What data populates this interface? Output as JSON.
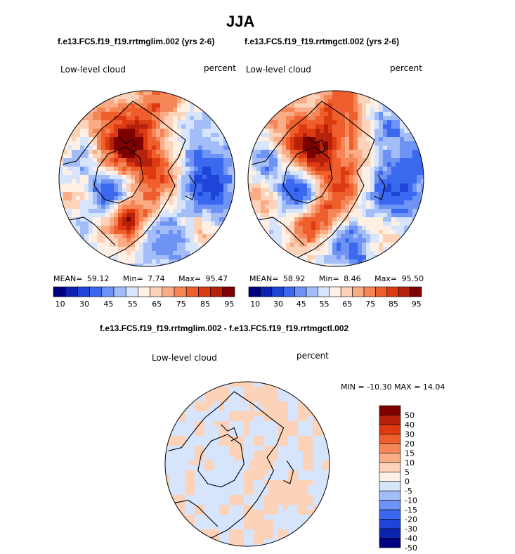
{
  "title": "JJA",
  "colors": {
    "abs_scale": [
      "#00007f",
      "#0b24b0",
      "#1e44d8",
      "#3a68ee",
      "#6e93f5",
      "#a3bdf8",
      "#d6e4fc",
      "#fff0e6",
      "#fcd2b8",
      "#f9ac85",
      "#f58657",
      "#ef5e2d",
      "#dd3a12",
      "#b5210a",
      "#7f0000"
    ],
    "diff_scale": [
      "#00007f",
      "#0b24b0",
      "#1e44d8",
      "#3a68ee",
      "#6e93f5",
      "#a3bdf8",
      "#d6e4fc",
      "#fff0e6",
      "#fcd2b8",
      "#f9ac85",
      "#f58657",
      "#ef5e2d",
      "#dd3a12",
      "#b5210a",
      "#7f0000"
    ]
  },
  "chart_data": [
    {
      "type": "heatmap",
      "projection": "north polar stereographic",
      "title": "f.e13.FC5.f19_f19.rrtmglim.002 (yrs 2-6)",
      "left_label": "Low-level cloud",
      "right_label": "percent",
      "stats": {
        "mean_label": "MEAN=",
        "mean": "59.12",
        "min_label": "Min=",
        "min": "7.74",
        "max_label": "Max=",
        "max": "95.47"
      },
      "colorbar_ticks": [
        "10",
        "30",
        "45",
        "55",
        "65",
        "75",
        "85",
        "95"
      ]
    },
    {
      "type": "heatmap",
      "projection": "north polar stereographic",
      "title": "f.e13.FC5.f19_f19.rrtmgctl.002 (yrs 2-6)",
      "left_label": "Low-level cloud",
      "right_label": "percent",
      "stats": {
        "mean_label": "MEAN=",
        "mean": "58.92",
        "min_label": "Min=",
        "min": "8.46",
        "max_label": "Max=",
        "max": "95.50"
      },
      "colorbar_ticks": [
        "10",
        "30",
        "45",
        "55",
        "65",
        "75",
        "85",
        "95"
      ]
    },
    {
      "type": "heatmap",
      "projection": "north polar stereographic",
      "title": "f.e13.FC5.f19_f19.rrtmglim.002 - f.e13.FC5.f19_f19.rrtmgctl.002",
      "left_label": "Low-level cloud",
      "right_label": "percent",
      "stats": {
        "min_label": "MIN =",
        "min": "-10.30",
        "max_label": "MAX =",
        "max": "14.04"
      },
      "colorbar_ticks": [
        "50",
        "40",
        "30",
        "20",
        "15",
        "10",
        "5",
        "0",
        "-5",
        "-10",
        "-15",
        "-20",
        "-30",
        "-40",
        "-50"
      ]
    }
  ]
}
